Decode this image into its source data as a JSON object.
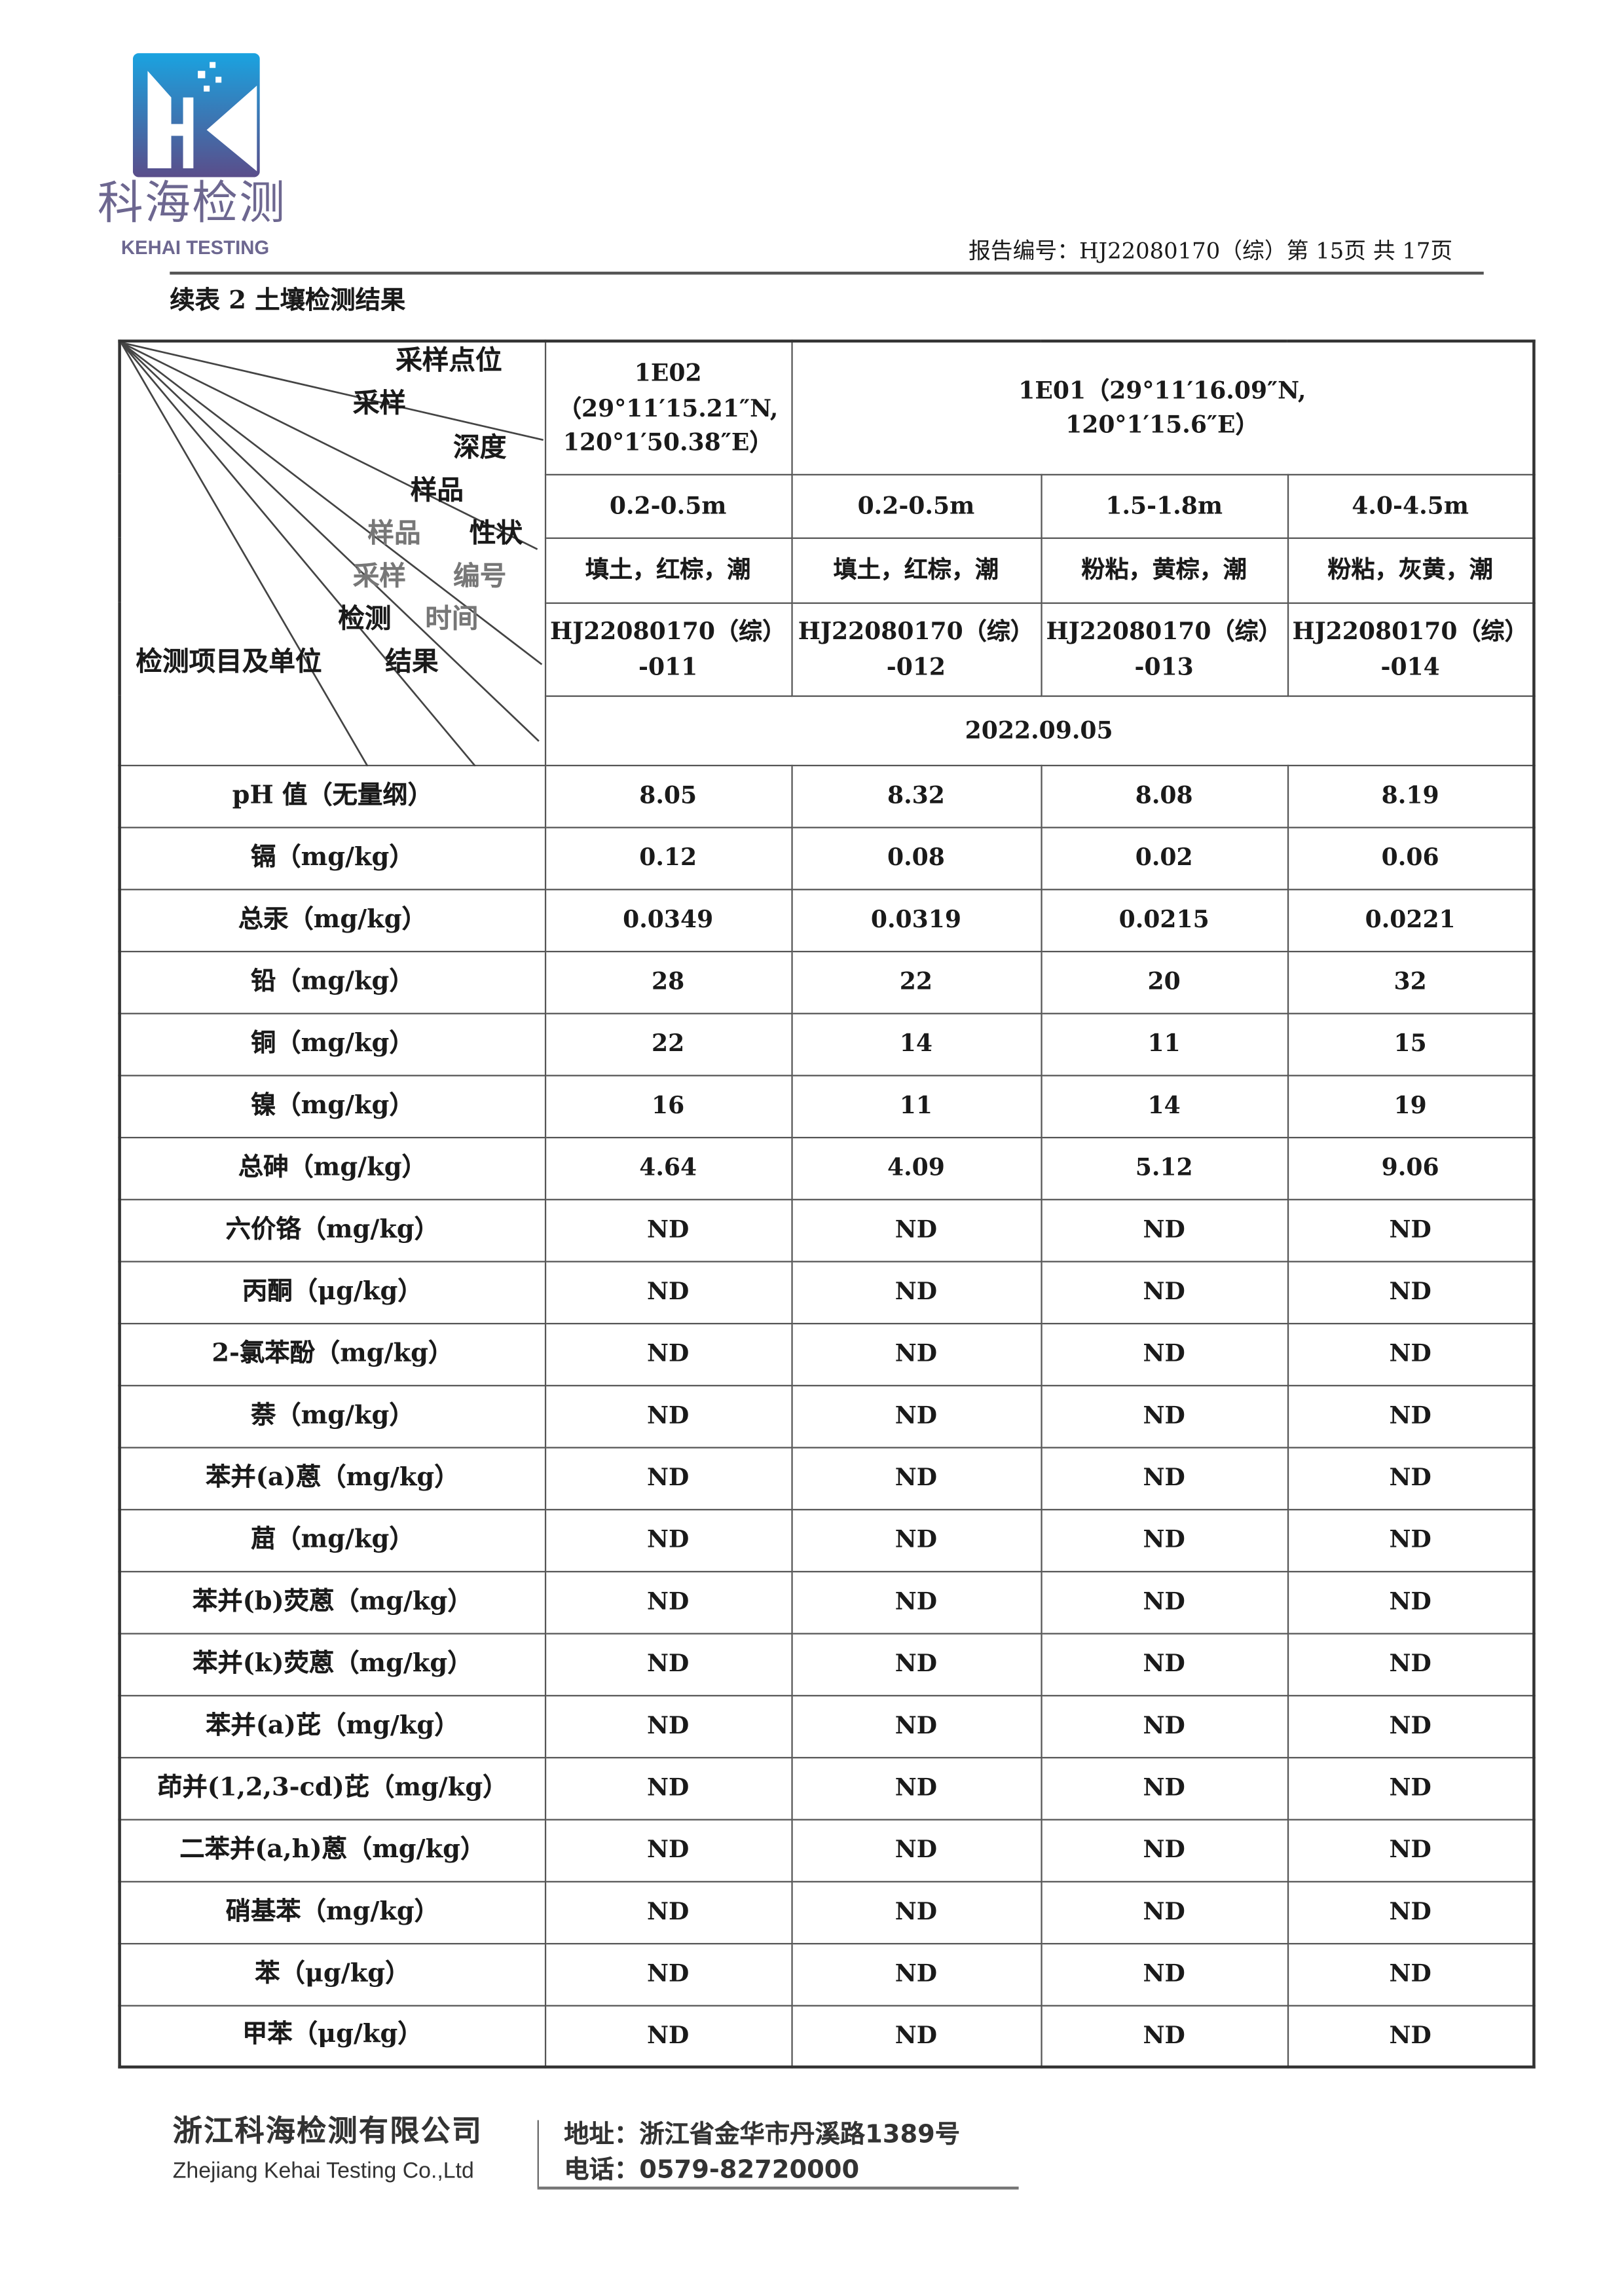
{
  "logo": {
    "cn": "科海检测",
    "en": "KEHAI TESTING",
    "colors": {
      "top": "#1aa3e0",
      "bottom": "#5a4d8a"
    }
  },
  "header": {
    "report_no": "报告编号：HJ22080170（综）第 15页  共 17页"
  },
  "table_title": "续表 2 土壤检测结果",
  "corner": {
    "l1": "采样点位",
    "l2": "采样",
    "l3": "深度",
    "l4": "样品",
    "l5a": "样品",
    "l5b": "性状",
    "l6a": "采样",
    "l6b": "编号",
    "l7a": "检测",
    "l7b": "时间",
    "l8a": "检测项目及单位",
    "l8b": "结果"
  },
  "sites": [
    {
      "name": "1E02",
      "coord": "（29°11′15.21″N,",
      "coord2": "120°1′50.38″E）"
    },
    {
      "name": "1E01（29°11′16.09″N,",
      "coord": "120°1′15.6″E）"
    }
  ],
  "depths": [
    "0.2-0.5m",
    "0.2-0.5m",
    "1.5-1.8m",
    "4.0-4.5m"
  ],
  "natures": [
    "填土，红棕，潮",
    "填土，红棕，潮",
    "粉粘，黄棕，潮",
    "粉粘，灰黄，潮"
  ],
  "codes": [
    [
      "HJ22080170（综）",
      "-011"
    ],
    [
      "HJ22080170（综）",
      "-012"
    ],
    [
      "HJ22080170（综）",
      "-013"
    ],
    [
      "HJ22080170（综）",
      "-014"
    ]
  ],
  "date": "2022.09.05",
  "rows": [
    {
      "item": "pH 值（无量纲）",
      "v": [
        "8.05",
        "8.32",
        "8.08",
        "8.19"
      ]
    },
    {
      "item": "镉（mg/kg）",
      "v": [
        "0.12",
        "0.08",
        "0.02",
        "0.06"
      ]
    },
    {
      "item": "总汞（mg/kg）",
      "v": [
        "0.0349",
        "0.0319",
        "0.0215",
        "0.0221"
      ]
    },
    {
      "item": "铅（mg/kg）",
      "v": [
        "28",
        "22",
        "20",
        "32"
      ]
    },
    {
      "item": "铜（mg/kg）",
      "v": [
        "22",
        "14",
        "11",
        "15"
      ]
    },
    {
      "item": "镍（mg/kg）",
      "v": [
        "16",
        "11",
        "14",
        "19"
      ]
    },
    {
      "item": "总砷（mg/kg）",
      "v": [
        "4.64",
        "4.09",
        "5.12",
        "9.06"
      ]
    },
    {
      "item": "六价铬（mg/kg）",
      "v": [
        "ND",
        "ND",
        "ND",
        "ND"
      ]
    },
    {
      "item": "丙酮（μg/kg）",
      "v": [
        "ND",
        "ND",
        "ND",
        "ND"
      ]
    },
    {
      "item": "2-氯苯酚（mg/kg）",
      "v": [
        "ND",
        "ND",
        "ND",
        "ND"
      ]
    },
    {
      "item": "萘（mg/kg）",
      "v": [
        "ND",
        "ND",
        "ND",
        "ND"
      ]
    },
    {
      "item": "苯并(a)蒽（mg/kg）",
      "v": [
        "ND",
        "ND",
        "ND",
        "ND"
      ]
    },
    {
      "item": "䓛（mg/kg）",
      "v": [
        "ND",
        "ND",
        "ND",
        "ND"
      ]
    },
    {
      "item": "苯并(b)荧蒽（mg/kg）",
      "v": [
        "ND",
        "ND",
        "ND",
        "ND"
      ]
    },
    {
      "item": "苯并(k)荧蒽（mg/kg）",
      "v": [
        "ND",
        "ND",
        "ND",
        "ND"
      ]
    },
    {
      "item": "苯并(a)芘（mg/kg）",
      "v": [
        "ND",
        "ND",
        "ND",
        "ND"
      ]
    },
    {
      "item": "茚并(1,2,3-cd)芘（mg/kg）",
      "v": [
        "ND",
        "ND",
        "ND",
        "ND"
      ]
    },
    {
      "item": "二苯并(a,h)蒽（mg/kg）",
      "v": [
        "ND",
        "ND",
        "ND",
        "ND"
      ]
    },
    {
      "item": "硝基苯（mg/kg）",
      "v": [
        "ND",
        "ND",
        "ND",
        "ND"
      ]
    },
    {
      "item": "苯（μg/kg）",
      "v": [
        "ND",
        "ND",
        "ND",
        "ND"
      ]
    },
    {
      "item": "甲苯（μg/kg）",
      "v": [
        "ND",
        "ND",
        "ND",
        "ND"
      ]
    }
  ],
  "footer": {
    "company_cn": "浙江科海检测有限公司",
    "company_en": "Zhejiang Kehai Testing Co.,Ltd",
    "address": "地址：浙江省金华市丹溪路1389号",
    "phone": "电话：0579-82720000"
  }
}
